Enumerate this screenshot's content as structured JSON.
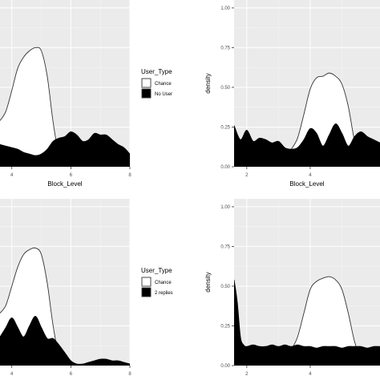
{
  "chart_data": [
    {
      "type": "area",
      "panel": "top-left",
      "xlabel": "Block_Level",
      "ylabel": "",
      "xlim": [
        3.6,
        8
      ],
      "ylim": [
        0,
        1.05
      ],
      "x_ticks": [
        4,
        6,
        8
      ],
      "y_ticks": [],
      "grid": true,
      "legend": {
        "position": "right",
        "title": "User_Type",
        "entries": [
          {
            "label": "Chance",
            "color": "#ffffff"
          },
          {
            "label": "No User",
            "color": "#000000"
          }
        ]
      },
      "series": [
        {
          "name": "Chance",
          "fill": "#ffffff",
          "stroke": "#333333",
          "x": [
            3.6,
            3.8,
            4.0,
            4.2,
            4.4,
            4.6,
            4.8,
            5.0,
            5.2,
            5.4,
            5.6,
            5.8
          ],
          "y": [
            0.29,
            0.35,
            0.48,
            0.62,
            0.69,
            0.73,
            0.75,
            0.73,
            0.57,
            0.28,
            0.07,
            0.0
          ]
        },
        {
          "name": "No User",
          "fill": "#000000",
          "stroke": "#000000",
          "x": [
            3.6,
            3.8,
            4.0,
            4.2,
            4.4,
            4.6,
            4.8,
            5.0,
            5.2,
            5.4,
            5.6,
            5.8,
            6.0,
            6.2,
            6.4,
            6.6,
            6.8,
            7.0,
            7.2,
            7.4,
            7.6,
            7.8,
            8.0
          ],
          "y": [
            0.14,
            0.13,
            0.12,
            0.11,
            0.09,
            0.08,
            0.07,
            0.08,
            0.11,
            0.16,
            0.18,
            0.19,
            0.22,
            0.2,
            0.16,
            0.17,
            0.21,
            0.2,
            0.2,
            0.17,
            0.14,
            0.12,
            0.08
          ]
        }
      ]
    },
    {
      "type": "area",
      "panel": "top-right",
      "xlabel": "Block_Level",
      "ylabel": "density",
      "xlim": [
        1.6,
        6.2
      ],
      "ylim": [
        0,
        1.05
      ],
      "x_ticks": [
        2,
        4
      ],
      "y_ticks": [
        "0.00",
        "0.25",
        "0.50",
        "0.75",
        "1.00"
      ],
      "grid": true,
      "series": [
        {
          "name": "Chance",
          "fill": "#ffffff",
          "stroke": "#333333",
          "x": [
            3.0,
            3.2,
            3.4,
            3.6,
            3.8,
            4.0,
            4.2,
            4.4,
            4.6,
            4.8,
            5.0,
            5.2,
            5.4,
            5.6,
            5.8
          ],
          "y": [
            0.0,
            0.06,
            0.11,
            0.18,
            0.33,
            0.49,
            0.56,
            0.57,
            0.59,
            0.57,
            0.52,
            0.38,
            0.16,
            0.04,
            0.0
          ]
        },
        {
          "name": "No User",
          "fill": "#000000",
          "stroke": "#000000",
          "x": [
            1.6,
            1.8,
            2.0,
            2.2,
            2.4,
            2.6,
            2.8,
            3.0,
            3.2,
            3.4,
            3.6,
            3.8,
            4.0,
            4.2,
            4.4,
            4.6,
            4.8,
            5.0,
            5.2,
            5.4,
            5.6,
            5.8,
            6.0,
            6.2
          ],
          "y": [
            0.26,
            0.17,
            0.23,
            0.16,
            0.18,
            0.17,
            0.15,
            0.16,
            0.12,
            0.11,
            0.12,
            0.17,
            0.24,
            0.21,
            0.13,
            0.2,
            0.27,
            0.21,
            0.13,
            0.19,
            0.22,
            0.19,
            0.17,
            0.15
          ]
        }
      ]
    },
    {
      "type": "area",
      "panel": "bottom-left",
      "xlabel": "",
      "ylabel": "",
      "xlim": [
        3.6,
        8
      ],
      "ylim": [
        0,
        1.05
      ],
      "x_ticks": [
        4,
        6,
        8
      ],
      "y_ticks": [],
      "grid": true,
      "legend": {
        "position": "right",
        "title": "User_Type",
        "entries": [
          {
            "label": "Chance",
            "color": "#ffffff"
          },
          {
            "label": "2 replies",
            "color": "#000000"
          }
        ]
      },
      "series": [
        {
          "name": "Chance",
          "fill": "#ffffff",
          "stroke": "#333333",
          "x": [
            3.6,
            3.8,
            4.0,
            4.2,
            4.4,
            4.6,
            4.8,
            5.0,
            5.2,
            5.4,
            5.6,
            5.8
          ],
          "y": [
            0.33,
            0.38,
            0.5,
            0.62,
            0.7,
            0.73,
            0.74,
            0.7,
            0.52,
            0.25,
            0.06,
            0.0
          ]
        },
        {
          "name": "2 replies",
          "fill": "#000000",
          "stroke": "#000000",
          "x": [
            3.6,
            3.8,
            4.0,
            4.2,
            4.4,
            4.6,
            4.8,
            5.0,
            5.2,
            5.4,
            5.6,
            5.8,
            6.0,
            6.2,
            6.4,
            6.6,
            6.8,
            7.0,
            7.2,
            7.4,
            7.6,
            7.8,
            8.0
          ],
          "y": [
            0.18,
            0.24,
            0.3,
            0.24,
            0.18,
            0.25,
            0.31,
            0.24,
            0.17,
            0.17,
            0.13,
            0.08,
            0.03,
            0.01,
            0.01,
            0.02,
            0.03,
            0.04,
            0.04,
            0.03,
            0.03,
            0.02,
            0.01
          ]
        }
      ]
    },
    {
      "type": "area",
      "panel": "bottom-right",
      "xlabel": "",
      "ylabel": "density",
      "xlim": [
        1.6,
        6.2
      ],
      "ylim": [
        0,
        1.05
      ],
      "x_ticks": [
        2,
        4
      ],
      "y_ticks": [
        "0.00",
        "0.25",
        "0.50",
        "0.75",
        "1.00"
      ],
      "grid": true,
      "series": [
        {
          "name": "Chance",
          "fill": "#ffffff",
          "stroke": "#333333",
          "x": [
            3.0,
            3.2,
            3.4,
            3.6,
            3.8,
            4.0,
            4.2,
            4.4,
            4.6,
            4.8,
            5.0,
            5.2,
            5.4,
            5.6,
            5.8
          ],
          "y": [
            0.0,
            0.05,
            0.1,
            0.18,
            0.33,
            0.48,
            0.53,
            0.55,
            0.56,
            0.54,
            0.48,
            0.33,
            0.15,
            0.04,
            0.0
          ]
        },
        {
          "name": "2 replies",
          "fill": "#000000",
          "stroke": "#000000",
          "x": [
            1.6,
            1.7,
            1.8,
            1.9,
            2.0,
            2.2,
            2.4,
            2.6,
            2.8,
            3.0,
            3.2,
            3.4,
            3.6,
            3.8,
            4.0,
            4.2,
            4.4,
            4.6,
            4.8,
            5.0,
            5.2,
            5.4,
            5.6,
            5.8,
            6.0,
            6.2
          ],
          "y": [
            0.54,
            0.4,
            0.18,
            0.13,
            0.12,
            0.13,
            0.12,
            0.12,
            0.13,
            0.12,
            0.13,
            0.12,
            0.13,
            0.12,
            0.12,
            0.11,
            0.12,
            0.12,
            0.12,
            0.11,
            0.12,
            0.12,
            0.12,
            0.11,
            0.12,
            0.12
          ]
        }
      ]
    }
  ]
}
